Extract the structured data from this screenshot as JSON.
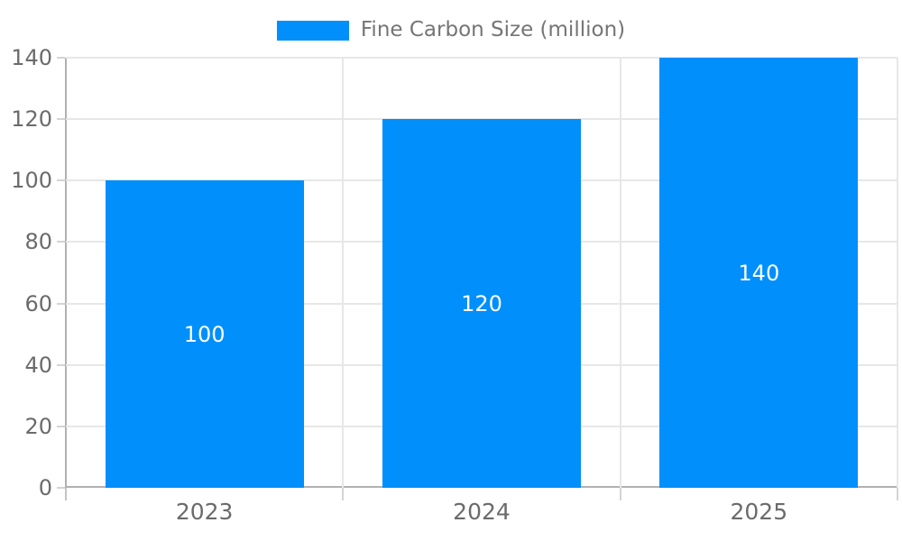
{
  "chart_data": {
    "type": "bar",
    "title": "",
    "legend": {
      "label": "Fine Carbon Size (million)",
      "position": "top"
    },
    "categories": [
      "2023",
      "2024",
      "2025"
    ],
    "series": [
      {
        "name": "Fine Carbon Size (million)",
        "values": [
          100,
          120,
          140
        ]
      }
    ],
    "data_labels": [
      "100",
      "120",
      "140"
    ],
    "xlabel": "",
    "ylabel": "",
    "ylim": [
      0,
      140
    ],
    "ytick_step": 20,
    "yticks": [
      "0",
      "20",
      "40",
      "60",
      "80",
      "100",
      "120",
      "140"
    ],
    "grid": true,
    "bar_width_ratio": 0.716,
    "colors": {
      "bar": "#008FFB",
      "data_label": "#ffffff",
      "grid": "#e7e7e7",
      "axis_line": "#b1b1b1",
      "tick": "#d4d4d4",
      "axis_label": "#6b6b6b",
      "legend_label": "#757575",
      "background": "#ffffff"
    }
  }
}
